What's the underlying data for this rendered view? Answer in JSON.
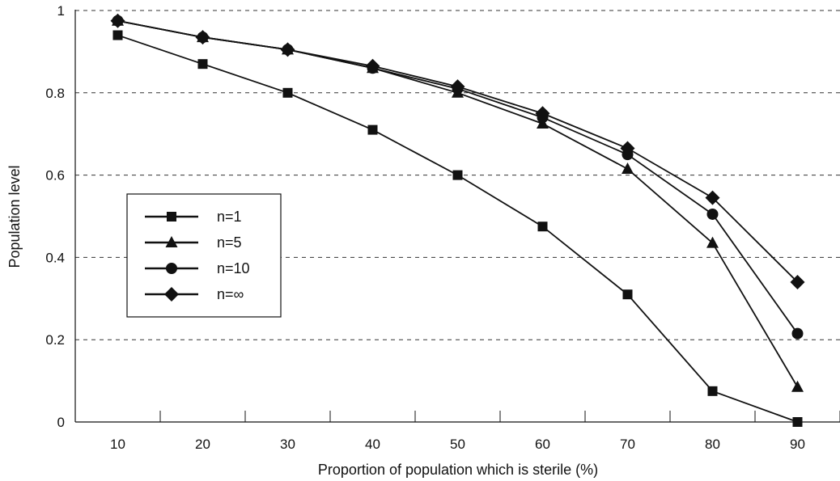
{
  "chart_data": {
    "type": "line",
    "xlabel": "Proportion of population which is sterile (%)",
    "ylabel": "Population level",
    "x": [
      10,
      20,
      30,
      40,
      50,
      60,
      70,
      80,
      90
    ],
    "xlim": [
      5,
      95
    ],
    "ylim": [
      0,
      1
    ],
    "y_ticks": [
      0,
      0.2,
      0.4,
      0.6,
      0.8,
      1
    ],
    "y_tick_labels": [
      "0",
      "0.2",
      "0.4",
      "0.6",
      "0.8",
      "1"
    ],
    "x_tick_labels": [
      "10",
      "20",
      "30",
      "40",
      "50",
      "60",
      "70",
      "80",
      "90"
    ],
    "grid": "horizontal dashed",
    "legend_position": "middle-left",
    "series": [
      {
        "name": "n=1",
        "marker": "square",
        "values": [
          0.94,
          0.87,
          0.8,
          0.71,
          0.6,
          0.475,
          0.31,
          0.075,
          0.0
        ]
      },
      {
        "name": "n=5",
        "marker": "triangle",
        "values": [
          0.975,
          0.935,
          0.905,
          0.86,
          0.8,
          0.725,
          0.615,
          0.435,
          0.085
        ]
      },
      {
        "name": "n=10",
        "marker": "circle",
        "values": [
          0.975,
          0.935,
          0.905,
          0.86,
          0.81,
          0.74,
          0.65,
          0.505,
          0.215
        ]
      },
      {
        "name": "n=∞",
        "marker": "diamond",
        "values": [
          0.975,
          0.935,
          0.905,
          0.865,
          0.815,
          0.75,
          0.665,
          0.545,
          0.34
        ]
      }
    ]
  }
}
